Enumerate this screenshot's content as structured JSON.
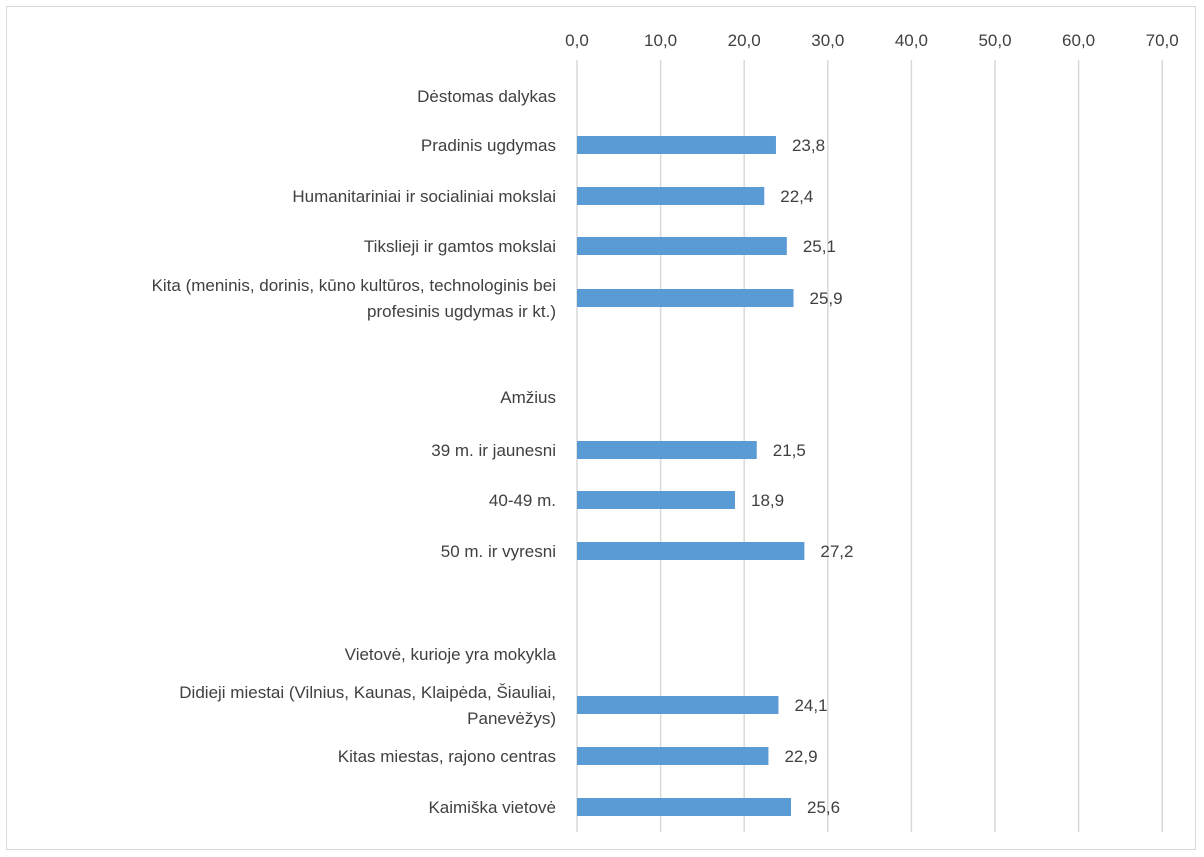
{
  "chart_data": {
    "type": "bar",
    "orientation": "horizontal",
    "xlim": [
      0,
      70
    ],
    "x_ticks": [
      "0,0",
      "10,0",
      "20,0",
      "30,0",
      "40,0",
      "50,0",
      "60,0",
      "70,0"
    ],
    "x_tick_values": [
      0,
      10,
      20,
      30,
      40,
      50,
      60,
      70
    ],
    "axis_position": "top",
    "grid": true,
    "bar_color": "#5b9bd5",
    "rows": [
      {
        "label": [
          "Dėstomas dalykas"
        ],
        "header": true
      },
      {
        "label": [
          "Pradinis ugdymas"
        ],
        "value": 23.8,
        "value_label": "23,8"
      },
      {
        "label": [
          "Humanitariniai ir socialiniai mokslai"
        ],
        "value": 22.4,
        "value_label": "22,4"
      },
      {
        "label": [
          "Tikslieji ir gamtos mokslai"
        ],
        "value": 25.1,
        "value_label": "25,1"
      },
      {
        "label": [
          "Kita (meninis, dorinis, kūno kultūros, technologinis bei",
          "profesinis ugdymas ir kt.)"
        ],
        "value": 25.9,
        "value_label": "25,9"
      },
      {
        "label": [
          ""
        ],
        "blank": true
      },
      {
        "label": [
          "Amžius"
        ],
        "header": true
      },
      {
        "label": [
          "39 m. ir jaunesni"
        ],
        "value": 21.5,
        "value_label": "21,5"
      },
      {
        "label": [
          "40-49 m."
        ],
        "value": 18.9,
        "value_label": "18,9"
      },
      {
        "label": [
          "50 m. ir vyresni"
        ],
        "value": 27.2,
        "value_label": "27,2"
      },
      {
        "label": [
          ""
        ],
        "blank": true
      },
      {
        "label": [
          "Vietovė, kurioje yra mokykla"
        ],
        "header": true
      },
      {
        "label": [
          "Didieji miestai (Vilnius, Kaunas, Klaipėda, Šiauliai,",
          "Panevėžys)"
        ],
        "value": 24.1,
        "value_label": "24,1"
      },
      {
        "label": [
          "Kitas miestas, rajono centras"
        ],
        "value": 22.9,
        "value_label": "22,9"
      },
      {
        "label": [
          "Kaimiška vietovė"
        ],
        "value": 25.6,
        "value_label": "25,6"
      }
    ]
  }
}
